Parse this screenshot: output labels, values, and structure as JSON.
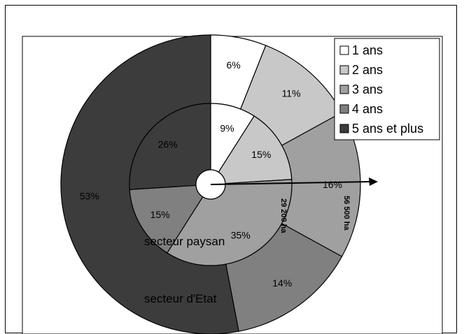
{
  "chart_data": {
    "type": "pie",
    "subtype": "nested-donut",
    "legend": {
      "placement": "top-right",
      "entries": [
        "1 ans",
        "2 ans",
        "3 ans",
        "4 ans",
        "5 ans et plus"
      ]
    },
    "colors": [
      "#ffffff",
      "#c8c8c8",
      "#a0a0a0",
      "#808080",
      "#3c3c3c"
    ],
    "rings": [
      {
        "name": "secteur paysan",
        "area_label": "29 200 ha",
        "values": [
          9,
          15,
          35,
          15,
          26
        ],
        "labels": [
          "9%",
          "15%",
          "35%",
          "15%",
          "26%"
        ]
      },
      {
        "name": "secteur d'Etat",
        "area_label": "56 500 ha",
        "values": [
          6,
          11,
          16,
          14,
          53
        ],
        "labels": [
          "6%",
          "11%",
          "16%",
          "14%",
          "53%"
        ]
      }
    ]
  }
}
